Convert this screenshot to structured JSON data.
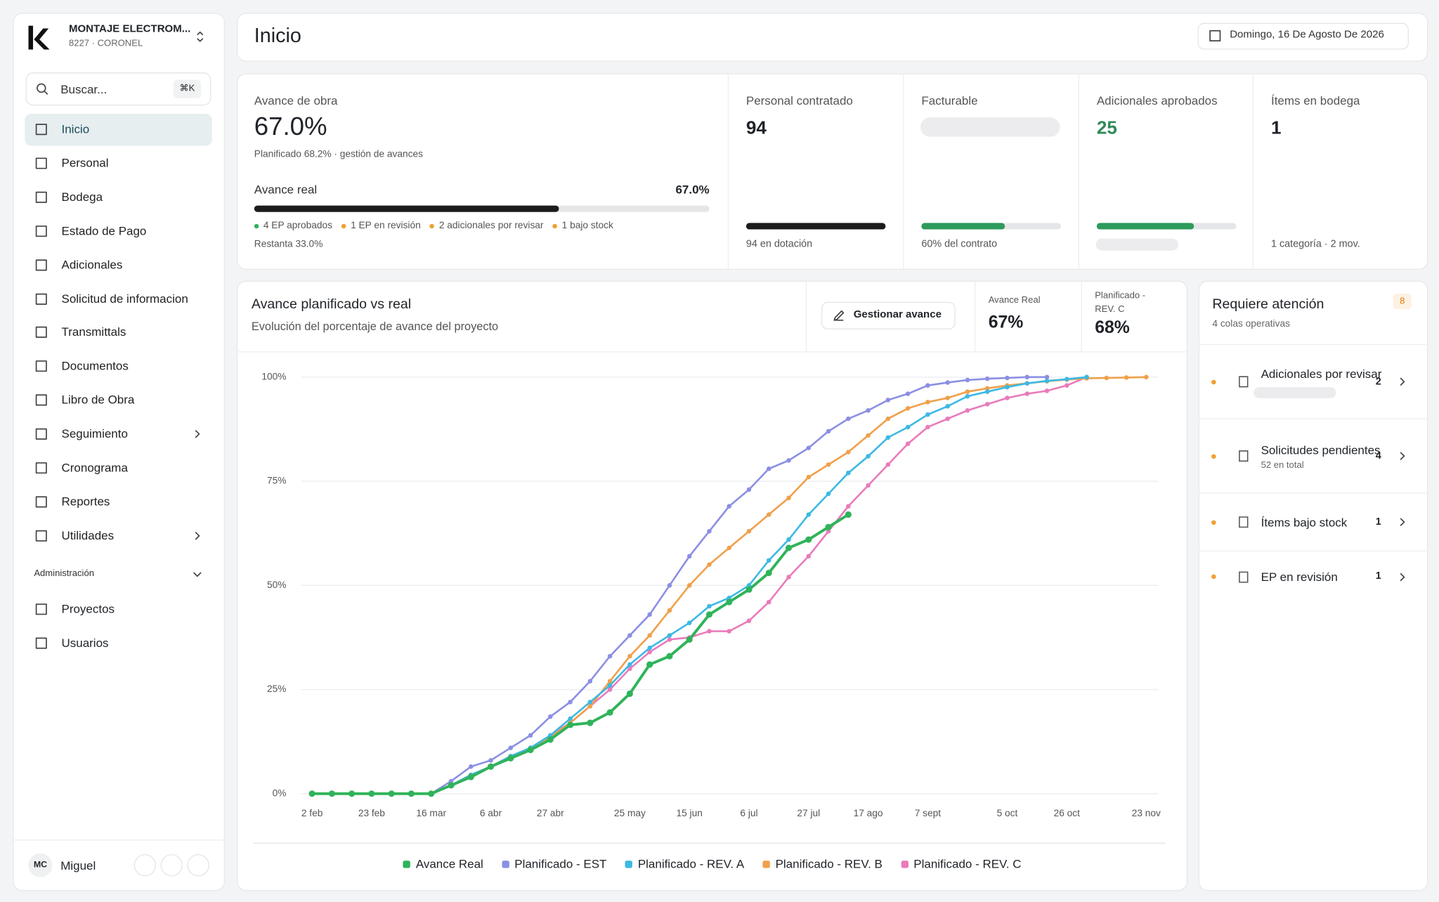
{
  "sidebar": {
    "org": "MONTAJE ELECTROM...",
    "org_sub": "8227 · CORONEL",
    "search": "Buscar...",
    "shortcut": "⌘K",
    "nav": [
      {
        "label": "Inicio",
        "active": true
      },
      {
        "label": "Personal"
      },
      {
        "label": "Bodega"
      },
      {
        "label": "Estado de Pago"
      },
      {
        "label": "Adicionales"
      },
      {
        "label": "Solicitud de informacion"
      },
      {
        "label": "Transmittals"
      },
      {
        "label": "Documentos"
      },
      {
        "label": "Libro de Obra"
      },
      {
        "label": "Seguimiento",
        "submenu": true
      },
      {
        "label": "Cronograma"
      },
      {
        "label": "Reportes"
      },
      {
        "label": "Utilidades",
        "submenu": true
      }
    ],
    "admin_label": "Administración",
    "admin_nav": [
      "Proyectos",
      "Usuarios"
    ],
    "user": {
      "initials": "MC",
      "name": "Miguel"
    }
  },
  "header": {
    "title": "Inicio",
    "date": "Domingo, 16 De Agosto De 2026"
  },
  "kpis": {
    "main": {
      "label": "Avance de obra",
      "value": "67.0%",
      "sub": "Planificado 68.2% · gestión de avances",
      "bar_label": "Avance real",
      "bar_value": "67.0%",
      "progress": 67,
      "bar_color": "#1c1c1c",
      "tags": [
        {
          "text": "4 EP aprobados",
          "color": "#2fb35a"
        },
        {
          "text": "1 EP en revisión",
          "color": "#f0a030"
        },
        {
          "text": "2 adicionales por revisar",
          "color": "#f0a030"
        },
        {
          "text": "1 bajo stock",
          "color": "#f0a030"
        }
      ],
      "remaining": "Restanta 33.0%"
    },
    "cards": [
      {
        "label": "Personal contratado",
        "value": "94",
        "progress": 100,
        "bar_color": "#1c1c1c",
        "foot": "94 en dotación"
      },
      {
        "label": "Facturable",
        "progress": 60,
        "bar_color": "#2e9a5c",
        "foot": "60% del contrato"
      },
      {
        "label": "Adicionales aprobados",
        "value": "25",
        "value_color": "#2e8a57",
        "progress": 70,
        "bar_color": "#2e9a5c"
      },
      {
        "label": "Ítems en bodega",
        "value": "1",
        "foot": "1 categoría · 2 mov."
      }
    ]
  },
  "chart_panel": {
    "title": "Avance planificado vs real",
    "subtitle": "Evolución del porcentaje de avance del proyecto",
    "button": "Gestionar avance",
    "stats": [
      {
        "label": "Avance Real",
        "value": "67%"
      },
      {
        "label": "Planificado - REV. C",
        "value": "68%"
      }
    ]
  },
  "chart_data": {
    "type": "line",
    "categories": [
      "2 feb",
      null,
      null,
      "23 feb",
      null,
      null,
      "16 mar",
      null,
      null,
      "6 abr",
      null,
      null,
      "27 abr",
      null,
      null,
      null,
      "25 may",
      null,
      null,
      "15 jun",
      null,
      null,
      "6 jul",
      null,
      null,
      "27 jul",
      null,
      null,
      "17 ago",
      null,
      null,
      "7 sept",
      null,
      null,
      null,
      "5 oct",
      null,
      null,
      "26 oct",
      null,
      null,
      null,
      "23 nov"
    ],
    "ylim": [
      0,
      100
    ],
    "yticks": [
      {
        "value": 0,
        "label": "0%"
      },
      {
        "value": 25,
        "label": "25%"
      },
      {
        "value": 50,
        "label": "50%"
      },
      {
        "value": 75,
        "label": "75%"
      },
      {
        "value": 100,
        "label": "100%"
      }
    ],
    "grid": true,
    "legend": "bottom",
    "series": [
      {
        "name": "Avance Real",
        "color": "#2fb35a",
        "values": [
          0,
          0,
          0,
          0,
          0,
          0,
          0,
          2,
          4,
          6.5,
          8.5,
          10.5,
          13,
          16.5,
          17,
          19.5,
          24,
          31,
          33,
          37,
          43,
          46,
          49,
          53,
          59,
          61,
          64,
          67,
          null,
          null,
          null,
          null,
          null,
          null,
          null,
          null,
          null,
          null,
          null,
          null,
          null,
          null,
          null
        ]
      },
      {
        "name": "Planificado - EST",
        "color": "#8b8fe3",
        "values": [
          0,
          0,
          0,
          0,
          0,
          0,
          0,
          3,
          6.5,
          8,
          11,
          14,
          18.5,
          22,
          27,
          33,
          38,
          43,
          50,
          57,
          63,
          69,
          73,
          78,
          80,
          83,
          87,
          90,
          92,
          94.5,
          96,
          98,
          98.7,
          99.3,
          99.6,
          99.8,
          100,
          100,
          null,
          null,
          null,
          null,
          null
        ]
      },
      {
        "name": "Planificado - REV. A",
        "color": "#3db9e3",
        "values": [
          0,
          0,
          0,
          0,
          0,
          0,
          0,
          2,
          4.5,
          6.5,
          9,
          11,
          14,
          18,
          22,
          26,
          31,
          35,
          38,
          41,
          45,
          47,
          50,
          56,
          61,
          67,
          72,
          77,
          81,
          85.5,
          88,
          91,
          93,
          95.4,
          96.5,
          97.6,
          98.5,
          99.1,
          99.5,
          100,
          null,
          null,
          null
        ]
      },
      {
        "name": "Planificado - REV. B",
        "color": "#f0a04b",
        "values": [
          0,
          0,
          0,
          0,
          0,
          0,
          0,
          2,
          4.5,
          6.5,
          9,
          11,
          13.5,
          17,
          21,
          27,
          33,
          38,
          44,
          50,
          55,
          59,
          63,
          67,
          71,
          76,
          79,
          82,
          86,
          90,
          92.5,
          94,
          95,
          96.5,
          97.3,
          98,
          98.5,
          99,
          99.4,
          99.7,
          99.8,
          99.9,
          100
        ]
      },
      {
        "name": "Planificado - REV. C",
        "color": "#e97bbb",
        "values": [
          0,
          0,
          0,
          0,
          0,
          0,
          0,
          2,
          4.5,
          6.5,
          9,
          11,
          14,
          17,
          21,
          25,
          30,
          34,
          37,
          37.5,
          39,
          39,
          41.5,
          46,
          52,
          57,
          63,
          69,
          74,
          79,
          84,
          88,
          90,
          92,
          93.5,
          95,
          96,
          96.7,
          98,
          100,
          null,
          null,
          null
        ]
      }
    ]
  },
  "attention": {
    "title": "Requiere atención",
    "badge": "8",
    "sub": "4 colas operativas",
    "items": [
      {
        "label": "Adicionales por revisar",
        "count": "2"
      },
      {
        "label": "Solicitudes pendientes",
        "count": "4",
        "sub": "52 en total"
      },
      {
        "label": "Ítems bajo stock",
        "count": "1"
      },
      {
        "label": "EP en revisión",
        "count": "1"
      }
    ]
  }
}
